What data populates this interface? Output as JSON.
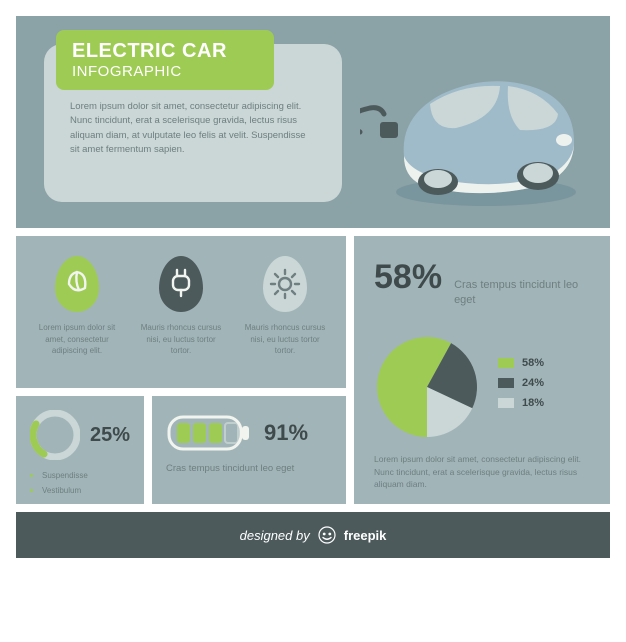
{
  "colors": {
    "bg_medium": "#8ba2a7",
    "bg_light": "#a1b5b8",
    "panel_light": "#cad7d6",
    "green": "#9ecb53",
    "green_light": "#c7e08f",
    "dark_teal": "#4d5a5c",
    "text_dark": "#3f4a4c",
    "text_muted": "#6f7e80",
    "white": "#f2f4ef",
    "car_body": "#9fbbc9",
    "car_shadow": "#6b8a95"
  },
  "title": {
    "line1": "ELECTRIC CAR",
    "line2": "INFOGRAPHIC",
    "body": "Lorem ipsum dolor sit amet, consectetur adipiscing elit. Nunc tincidunt, erat a scelerisque gravida, lectus risus aliquam diam, at vulputate leo felis at velit. Suspendisse sit amet fermentum sapien."
  },
  "icons": [
    {
      "icon_name": "leaf-icon",
      "badge_color": "#9ecb53",
      "glyph_color": "#f2f4ef",
      "text": "Lorem ipsum dolor sit amet, consectetur adipiscing elit."
    },
    {
      "icon_name": "plug-icon",
      "badge_color": "#4d5a5c",
      "glyph_color": "#f2f4ef",
      "text": "Mauris rhoncus cursus nisi, eu luctus tortor tortor."
    },
    {
      "icon_name": "sun-icon",
      "badge_color": "#cad7d6",
      "glyph_color": "#6f7e80",
      "text": "Mauris rhoncus cursus nisi, eu luctus tortor tortor."
    }
  ],
  "pie": {
    "headline_pct": "58%",
    "headline_text": "Cras tempus tincidunt leo eget",
    "slices": [
      {
        "label": "58%",
        "value": 58,
        "color": "#9ecb53"
      },
      {
        "label": "24%",
        "value": 24,
        "color": "#4d5a5c"
      },
      {
        "label": "18%",
        "value": 18,
        "color": "#cad7d6"
      }
    ],
    "radius": 50,
    "desc": "Lorem ipsum dolor sit amet, consectetur adipiscing elit. Nunc tincidunt, erat a scelerisque gravida, lectus risus aliquam diam."
  },
  "gauge": {
    "pct_label": "25%",
    "pct_value": 25,
    "track_color": "#cad7d6",
    "fill_color": "#9ecb53",
    "radius": 22,
    "stroke": 7,
    "items": [
      "Suspendisse",
      "Vestibulum"
    ]
  },
  "battery": {
    "pct_label": "91%",
    "segments_filled": 3,
    "segments_total": 4,
    "outline_color": "#f2f4ef",
    "fill_color": "#9ecb53",
    "text": "Cras tempus tincidunt leo eget"
  },
  "footer": {
    "prefix": "designed by",
    "brand": "freepik"
  }
}
